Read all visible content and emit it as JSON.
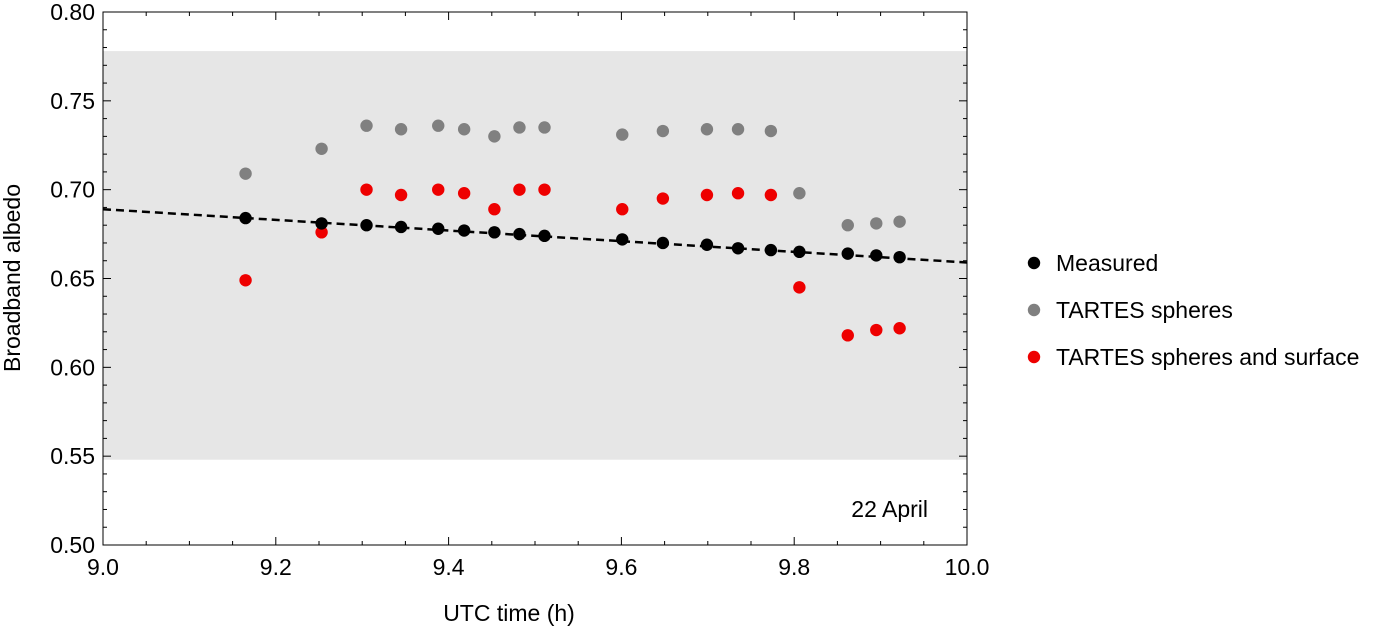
{
  "chart_data": {
    "type": "scatter",
    "xlabel": "UTC time (h)",
    "ylabel": "Broadband albedo",
    "xlim": [
      9.0,
      10.0
    ],
    "ylim": [
      0.5,
      0.8
    ],
    "x_ticks": [
      9.0,
      9.2,
      9.4,
      9.6,
      9.8,
      10.0
    ],
    "x_tick_labels": [
      "9.0",
      "9.2",
      "9.4",
      "9.6",
      "9.8",
      "10.0"
    ],
    "y_ticks": [
      0.5,
      0.55,
      0.6,
      0.65,
      0.7,
      0.75,
      0.8
    ],
    "y_tick_labels": [
      "0.50",
      "0.55",
      "0.60",
      "0.65",
      "0.70",
      "0.75",
      "0.80"
    ],
    "annotation": "22 April",
    "shaded_band": {
      "y_range": [
        0.548,
        0.778
      ],
      "color": "#e6e6e6"
    },
    "trend_line": {
      "x": [
        9.0,
        10.0
      ],
      "y": [
        0.689,
        0.659
      ],
      "style": "dashed",
      "color": "#000000"
    },
    "legend_position": "right",
    "series": [
      {
        "name": "Measured",
        "color": "#000000",
        "x": [
          9.165,
          9.253,
          9.305,
          9.345,
          9.388,
          9.418,
          9.453,
          9.482,
          9.511,
          9.601,
          9.648,
          9.699,
          9.735,
          9.773,
          9.806,
          9.862,
          9.895,
          9.922
        ],
        "y": [
          0.684,
          0.681,
          0.68,
          0.679,
          0.678,
          0.677,
          0.676,
          0.675,
          0.674,
          0.672,
          0.67,
          0.669,
          0.667,
          0.666,
          0.665,
          0.664,
          0.663,
          0.662
        ]
      },
      {
        "name": "TARTES spheres",
        "color": "#808080",
        "x": [
          9.165,
          9.253,
          9.305,
          9.345,
          9.388,
          9.418,
          9.453,
          9.482,
          9.511,
          9.601,
          9.648,
          9.699,
          9.735,
          9.773,
          9.806,
          9.862,
          9.895,
          9.922
        ],
        "y": [
          0.709,
          0.723,
          0.736,
          0.734,
          0.736,
          0.734,
          0.73,
          0.735,
          0.735,
          0.731,
          0.733,
          0.734,
          0.734,
          0.733,
          0.698,
          0.68,
          0.681,
          0.682
        ]
      },
      {
        "name": "TARTES spheres and surface",
        "color": "#ee0000",
        "x": [
          9.165,
          9.253,
          9.305,
          9.345,
          9.388,
          9.418,
          9.453,
          9.482,
          9.511,
          9.601,
          9.648,
          9.699,
          9.735,
          9.773,
          9.806,
          9.862,
          9.895,
          9.922
        ],
        "y": [
          0.649,
          0.676,
          0.7,
          0.697,
          0.7,
          0.698,
          0.689,
          0.7,
          0.7,
          0.689,
          0.695,
          0.697,
          0.698,
          0.697,
          0.645,
          0.618,
          0.621,
          0.622
        ]
      }
    ]
  }
}
